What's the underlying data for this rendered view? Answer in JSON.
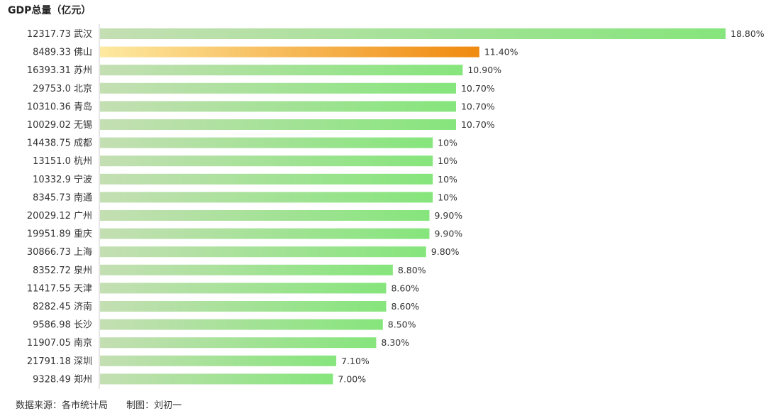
{
  "chart_data": {
    "type": "bar",
    "orientation": "horizontal",
    "title": "GDP总量（亿元）",
    "categories": [
      "12317.73 武汉",
      "8489.33 佛山",
      "16393.31 苏州",
      "29753.0 北京",
      "10310.36 青岛",
      "10029.02 无锡",
      "14438.75 成都",
      "13151.0 杭州",
      "10332.9 宁波",
      "8345.73 南通",
      "20029.12 广州",
      "19951.89 重庆",
      "30866.73 上海",
      "8352.72 泉州",
      "11417.55 天津",
      "8282.45 济南",
      "9586.98 长沙",
      "11907.05 南京",
      "21791.18 深圳",
      "9328.49 郑州"
    ],
    "values": [
      18.8,
      11.4,
      10.9,
      10.7,
      10.7,
      10.7,
      10,
      10,
      10,
      10,
      9.9,
      9.9,
      9.8,
      8.8,
      8.6,
      8.6,
      8.5,
      8.3,
      7.1,
      7.0
    ],
    "value_labels": [
      "18.80%",
      "11.40%",
      "10.90%",
      "10.70%",
      "10.70%",
      "10.70%",
      "10%",
      "10%",
      "10%",
      "10%",
      "9.90%",
      "9.90%",
      "9.80%",
      "8.80%",
      "8.60%",
      "8.60%",
      "8.50%",
      "8.30%",
      "7.10%",
      "7.00%"
    ],
    "highlight_index": 1,
    "xlim": [
      0,
      18.8
    ],
    "grid": false,
    "legend": "none",
    "colors": {
      "bar_start": "#c4dfb3",
      "bar_end": "#86e57c",
      "highlight_start": "#fde9a0",
      "highlight_end": "#f08a10",
      "highlight_label": "#e8961a",
      "axis": "#cccccc"
    }
  },
  "footer": {
    "source": "数据来源：各市统计局",
    "author": "制图：刘初一"
  }
}
